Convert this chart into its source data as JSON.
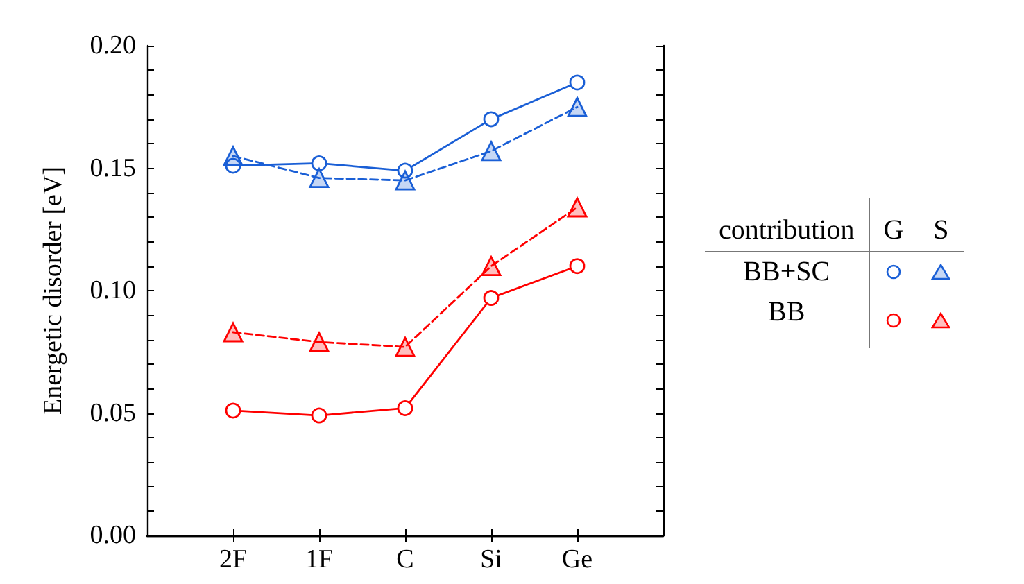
{
  "chart_data": {
    "type": "line",
    "ylabel": "Energetic disorder [eV]",
    "categories": [
      null,
      "2F",
      "1F",
      "C",
      "Si",
      "Ge",
      null
    ],
    "ylim": [
      0,
      0.2
    ],
    "yticks": [
      {
        "value": 0,
        "label": "0.00"
      },
      {
        "value": 0.01,
        "label": null
      },
      {
        "value": 0.02,
        "label": null
      },
      {
        "value": 0.03,
        "label": null
      },
      {
        "value": 0.04,
        "label": null
      },
      {
        "value": 0.05,
        "label": "0.05"
      },
      {
        "value": 0.06,
        "label": null
      },
      {
        "value": 0.07,
        "label": null
      },
      {
        "value": 0.08,
        "label": null
      },
      {
        "value": 0.09,
        "label": null
      },
      {
        "value": 0.1,
        "label": "0.10"
      },
      {
        "value": 0.11,
        "label": null
      },
      {
        "value": 0.12,
        "label": null
      },
      {
        "value": 0.13,
        "label": null
      },
      {
        "value": 0.14,
        "label": null
      },
      {
        "value": 0.15,
        "label": "0.15"
      },
      {
        "value": 0.16,
        "label": null
      },
      {
        "value": 0.17,
        "label": null
      },
      {
        "value": 0.18,
        "label": null
      },
      {
        "value": 0.19,
        "label": null
      },
      {
        "value": 0.2,
        "label": "0.20"
      }
    ],
    "grid": false,
    "series": [
      {
        "color": "#1a5fd6",
        "marker": "circle",
        "line_style": "solid",
        "values": [
          null,
          0.151,
          0.152,
          0.149,
          0.17,
          0.185,
          null
        ]
      },
      {
        "color": "#1a5fd6",
        "marker": "triangle",
        "line_style": "dashed",
        "values": [
          null,
          0.155,
          0.146,
          0.145,
          0.157,
          0.175,
          null
        ]
      },
      {
        "color": "#ff0000",
        "marker": "circle",
        "line_style": "solid",
        "values": [
          null,
          0.051,
          0.049,
          0.052,
          0.097,
          0.11,
          null
        ]
      },
      {
        "color": "#ff0000",
        "marker": "triangle",
        "line_style": "dashed",
        "values": [
          null,
          0.083,
          0.079,
          0.077,
          0.11,
          0.134,
          null
        ]
      }
    ],
    "annotations": [
      "contribution",
      "G",
      "S",
      "BB+SC",
      "BB"
    ]
  }
}
